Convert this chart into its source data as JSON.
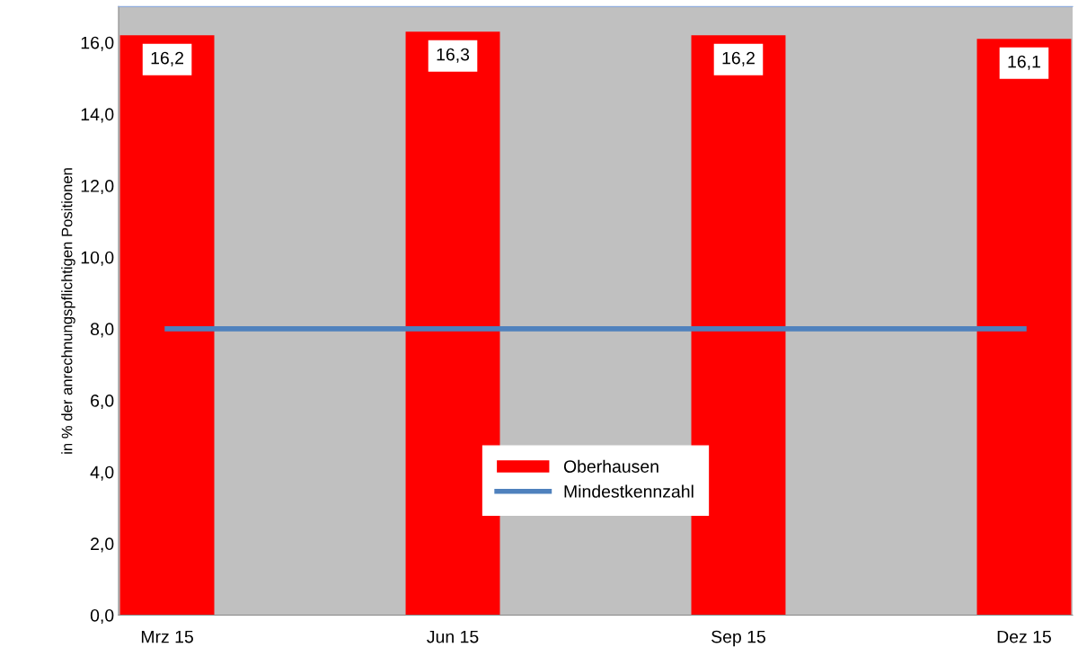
{
  "chart_data": {
    "type": "bar",
    "ylabel": "in % der anrechnungspflichtigen Positionen",
    "categories": [
      "Mrz 15",
      "Jun 15",
      "Sep 15",
      "Dez 15"
    ],
    "series": [
      {
        "name": "Oberhausen",
        "color": "#ff0000",
        "values": [
          16.2,
          16.3,
          16.2,
          16.1
        ],
        "value_labels": [
          "16,2",
          "16,3",
          "16,2",
          "16,1"
        ]
      },
      {
        "name": "Mindestkennzahl",
        "type": "line",
        "color": "#4f81bd",
        "values": [
          8,
          8,
          8,
          8
        ]
      }
    ],
    "ylim": [
      0,
      17
    ],
    "yticks": [
      {
        "value": 0,
        "label": "0,0"
      },
      {
        "value": 2,
        "label": "2,0"
      },
      {
        "value": 4,
        "label": "4,0"
      },
      {
        "value": 6,
        "label": "6,0"
      },
      {
        "value": 8,
        "label": "8,0"
      },
      {
        "value": 10,
        "label": "10,0"
      },
      {
        "value": 12,
        "label": "12,0"
      },
      {
        "value": 14,
        "label": "14,0"
      },
      {
        "value": 16,
        "label": "16,0"
      }
    ],
    "grid": false,
    "legend": "bottom",
    "marker": "none"
  }
}
